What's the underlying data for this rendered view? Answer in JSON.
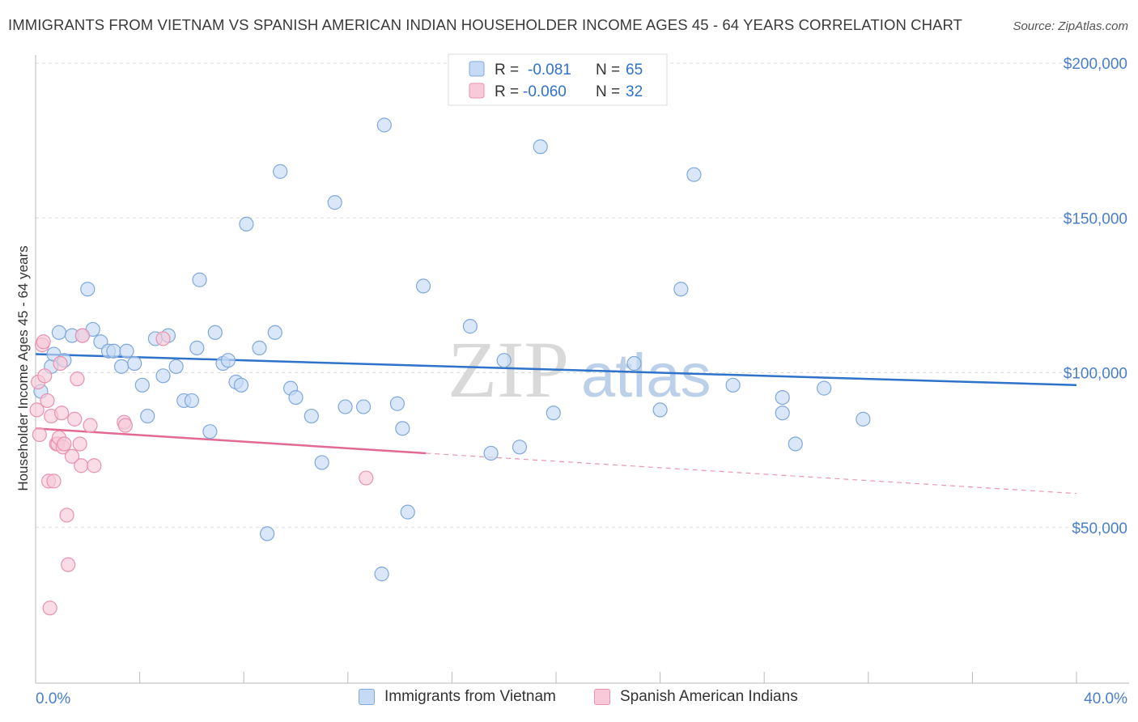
{
  "title": "IMMIGRANTS FROM VIETNAM VS SPANISH AMERICAN INDIAN HOUSEHOLDER INCOME AGES 45 - 64 YEARS CORRELATION CHART",
  "source": "Source: ZipAtlas.com",
  "watermark": {
    "zip": "ZIP",
    "atlas": "atlas"
  },
  "colors": {
    "blue_fill": "#c6daf5",
    "blue_stroke": "#7fa8dc",
    "blue_line": "#2e72c9",
    "pink_fill": "#f8c9d8",
    "pink_stroke": "#e892ae",
    "pink_line": "#e26a92",
    "tick_text": "#4a7ecb",
    "grid": "#dddddd"
  },
  "legend": {
    "items": [
      {
        "r_label": "R =",
        "r_value": "-0.081",
        "n_label": "N =",
        "n_value": "65"
      },
      {
        "r_label": "R =",
        "r_value": "-0.060",
        "n_label": "N =",
        "n_value": "32"
      }
    ]
  },
  "chart_data": {
    "type": "scatter",
    "title": "IMMIGRANTS FROM VIETNAM VS SPANISH AMERICAN INDIAN HOUSEHOLDER INCOME AGES 45 - 64 YEARS CORRELATION CHART",
    "xlabel": "",
    "ylabel": "Householder Income Ages 45 - 64 years",
    "xlim": [
      0,
      40
    ],
    "ylim": [
      0,
      200000
    ],
    "x_tick_labels": [
      "0.0%",
      "40.0%"
    ],
    "y_ticks": [
      50000,
      100000,
      150000,
      200000
    ],
    "y_tick_labels": [
      "$50,000",
      "$100,000",
      "$150,000",
      "$200,000"
    ],
    "grid": true,
    "legend_position": "top-center",
    "series": [
      {
        "name": "Immigrants from Vietnam",
        "color": "#7fa8dc",
        "trend": {
          "x": [
            0,
            40
          ],
          "y": [
            106000,
            96000
          ]
        },
        "points": [
          [
            0.2,
            94000
          ],
          [
            0.6,
            102000
          ],
          [
            0.7,
            106000
          ],
          [
            0.9,
            113000
          ],
          [
            1.1,
            104000
          ],
          [
            1.4,
            112000
          ],
          [
            1.8,
            112000
          ],
          [
            2.0,
            127000
          ],
          [
            2.2,
            114000
          ],
          [
            2.5,
            110000
          ],
          [
            2.8,
            107000
          ],
          [
            3.0,
            107000
          ],
          [
            3.3,
            102000
          ],
          [
            3.5,
            107000
          ],
          [
            3.8,
            103000
          ],
          [
            4.1,
            96000
          ],
          [
            4.3,
            86000
          ],
          [
            4.6,
            111000
          ],
          [
            4.9,
            99000
          ],
          [
            5.1,
            112000
          ],
          [
            5.4,
            102000
          ],
          [
            5.7,
            91000
          ],
          [
            6.0,
            91000
          ],
          [
            6.2,
            108000
          ],
          [
            6.3,
            130000
          ],
          [
            6.7,
            81000
          ],
          [
            6.9,
            113000
          ],
          [
            7.2,
            103000
          ],
          [
            7.4,
            104000
          ],
          [
            7.7,
            97000
          ],
          [
            7.9,
            96000
          ],
          [
            8.1,
            148000
          ],
          [
            8.6,
            108000
          ],
          [
            8.9,
            48000
          ],
          [
            9.2,
            113000
          ],
          [
            9.4,
            165000
          ],
          [
            9.8,
            95000
          ],
          [
            10.0,
            92000
          ],
          [
            10.6,
            86000
          ],
          [
            11.0,
            71000
          ],
          [
            11.5,
            155000
          ],
          [
            11.9,
            89000
          ],
          [
            12.6,
            89000
          ],
          [
            13.3,
            35000
          ],
          [
            13.4,
            180000
          ],
          [
            13.9,
            90000
          ],
          [
            14.1,
            82000
          ],
          [
            14.3,
            55000
          ],
          [
            14.9,
            128000
          ],
          [
            16.7,
            115000
          ],
          [
            17.5,
            74000
          ],
          [
            18.0,
            104000
          ],
          [
            18.6,
            76000
          ],
          [
            19.4,
            173000
          ],
          [
            19.9,
            87000
          ],
          [
            23.0,
            103000
          ],
          [
            24.0,
            88000
          ],
          [
            24.8,
            127000
          ],
          [
            25.3,
            164000
          ],
          [
            26.8,
            96000
          ],
          [
            28.7,
            92000
          ],
          [
            28.7,
            87000
          ],
          [
            29.2,
            77000
          ],
          [
            30.3,
            95000
          ],
          [
            31.8,
            85000
          ]
        ]
      },
      {
        "name": "Spanish American Indians",
        "color": "#e892ae",
        "trend": {
          "x": [
            0,
            15
          ],
          "y": [
            82000,
            74000
          ]
        },
        "trend_extrapolated": {
          "x": [
            15,
            40
          ],
          "y": [
            74000,
            61000
          ]
        },
        "points": [
          [
            0.05,
            88000
          ],
          [
            0.1,
            97000
          ],
          [
            0.15,
            80000
          ],
          [
            0.25,
            109000
          ],
          [
            0.3,
            110000
          ],
          [
            0.35,
            99000
          ],
          [
            0.45,
            91000
          ],
          [
            0.5,
            65000
          ],
          [
            0.6,
            86000
          ],
          [
            0.7,
            65000
          ],
          [
            0.8,
            77000
          ],
          [
            0.85,
            77000
          ],
          [
            0.9,
            79000
          ],
          [
            0.95,
            103000
          ],
          [
            1.0,
            87000
          ],
          [
            1.05,
            76000
          ],
          [
            1.1,
            77000
          ],
          [
            1.2,
            54000
          ],
          [
            1.25,
            38000
          ],
          [
            1.4,
            73000
          ],
          [
            1.5,
            85000
          ],
          [
            1.6,
            98000
          ],
          [
            1.7,
            77000
          ],
          [
            1.75,
            70000
          ],
          [
            1.8,
            112000
          ],
          [
            2.1,
            83000
          ],
          [
            2.25,
            70000
          ],
          [
            3.4,
            84000
          ],
          [
            3.45,
            83000
          ],
          [
            4.9,
            111000
          ],
          [
            12.7,
            66000
          ],
          [
            0.55,
            24000
          ]
        ]
      }
    ]
  }
}
